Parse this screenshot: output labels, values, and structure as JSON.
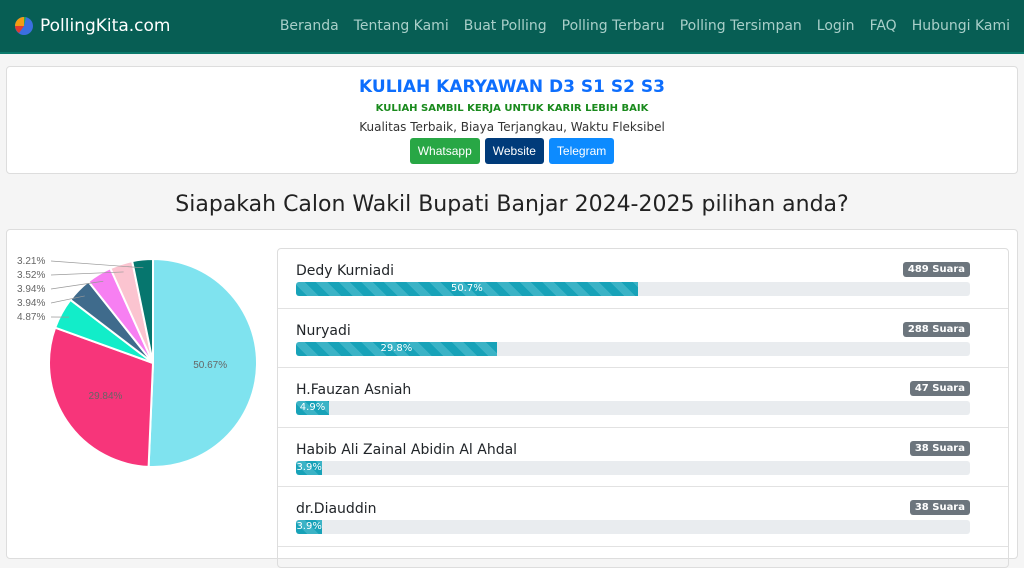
{
  "nav": {
    "brand": "PollingKita.com",
    "items": [
      "Beranda",
      "Tentang Kami",
      "Buat Polling",
      "Polling Terbaru",
      "Polling Tersimpan",
      "Login",
      "FAQ",
      "Hubungi Kami"
    ]
  },
  "ad": {
    "title": "KULIAH KARYAWAN D3 S1 S2 S3",
    "subtitle": "KULIAH SAMBIL KERJA UNTUK KARIR LEBIH BAIK",
    "tagline": "Kualitas Terbaik, Biaya Terjangkau, Waktu Fleksibel",
    "buttons": [
      {
        "label": "Whatsapp",
        "color": "#28a745"
      },
      {
        "label": "Website",
        "color": "#003b7a"
      },
      {
        "label": "Telegram",
        "color": "#0d8bff"
      }
    ]
  },
  "poll": {
    "question": "Siapakah Calon Wakil Bupati Banjar 2024-2025 pilihan anda?",
    "options": [
      {
        "name": "Dedy Kurniadi",
        "votes": "489 Suara",
        "percent": 50.7,
        "label": "50.7%"
      },
      {
        "name": "Nuryadi",
        "votes": "288 Suara",
        "percent": 29.8,
        "label": "29.8%"
      },
      {
        "name": "H.Fauzan Asniah",
        "votes": "47 Suara",
        "percent": 4.9,
        "label": "4.9%"
      },
      {
        "name": "Habib Ali Zainal Abidin Al Ahdal",
        "votes": "38 Suara",
        "percent": 3.9,
        "label": "3.9%"
      },
      {
        "name": "dr.Diauddin",
        "votes": "38 Suara",
        "percent": 3.9,
        "label": "3.9%"
      }
    ]
  },
  "chart_data": {
    "type": "pie",
    "values": [
      50.67,
      29.84,
      4.87,
      3.94,
      3.94,
      3.52,
      3.21
    ],
    "labels": [
      "50.67%",
      "29.84%",
      "4.87%",
      "3.94%",
      "3.94%",
      "3.52%",
      "3.21%"
    ],
    "colors": [
      "#7fe3ef",
      "#f7357a",
      "#12edc9",
      "#3f6b8c",
      "#f77ff2",
      "#fbc4d0",
      "#06766e"
    ]
  }
}
